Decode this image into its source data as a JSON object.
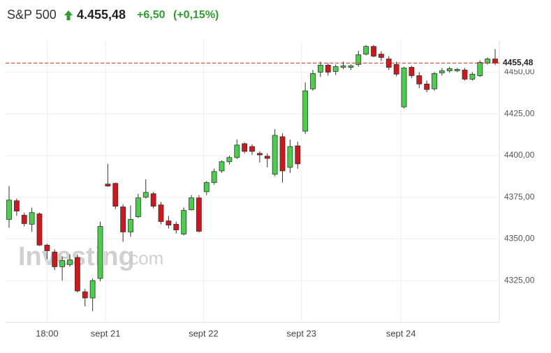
{
  "chart_data": {
    "type": "candlestick",
    "title": "S&P 500",
    "price": "4.455,48",
    "change": "+6,50",
    "change_pct": "(+0,15%)",
    "watermark": [
      "Investing",
      ".com"
    ],
    "up_color": "#47d147",
    "down_color": "#d7141a",
    "grid": true,
    "last_price": {
      "value": 4455.48,
      "label": "4455,48"
    },
    "ylim": [
      4300,
      4469
    ],
    "yticks": [
      {
        "value": 4325,
        "label": "4325,00"
      },
      {
        "value": 4350,
        "label": "4350,00"
      },
      {
        "value": 4375,
        "label": "4375,00"
      },
      {
        "value": 4400,
        "label": "4400,00"
      },
      {
        "value": 4425,
        "label": "4425,00"
      },
      {
        "value": 4450,
        "label": "4450,00"
      }
    ],
    "xlim": [
      -0.46,
      64.55
    ],
    "xticks": [
      {
        "value": 5,
        "label": "18:00"
      },
      {
        "value": 12.7,
        "label": "sept 21"
      },
      {
        "value": 25.6,
        "label": "sept 22"
      },
      {
        "value": 38.5,
        "label": "sept 23"
      },
      {
        "value": 51.6,
        "label": "sept 24"
      }
    ],
    "open": [
      4361.7,
      4372.9,
      4364.2,
      4358.8,
      4365.0,
      4346.3,
      4342.1,
      4333.3,
      4334.6,
      4338.8,
      4318.3,
      4314.6,
      4326.3,
      4382.9,
      4383.3,
      4369.2,
      4354.2,
      4363.3,
      4375.0,
      4377.1,
      4370.4,
      4360.8,
      4358.8,
      4352.9,
      4367.5,
      4374.6,
      4378.3,
      4383.8,
      4390.8,
      4396.3,
      4398.8,
      4407.1,
      4405.4,
      4401.3,
      4399.6,
      4388.8,
      4411.3,
      4392.9,
      4405.8,
      4414.6,
      4440.0,
      4450.0,
      4454.2,
      4450.4,
      4452.9,
      4452.9,
      4454.6,
      4460.8,
      4465.4,
      4460.8,
      4457.9,
      4454.6,
      4429.2,
      4452.9,
      4447.9,
      4442.9,
      4440.0,
      4449.6,
      4450.8,
      4450.8,
      4451.3,
      4445.8,
      4447.9,
      4455.4,
      4457.9
    ],
    "high": [
      4381.7,
      4374.2,
      4365.8,
      4368.8,
      4365.8,
      4347.1,
      4343.8,
      4339.6,
      4340.8,
      4340.8,
      4320.0,
      4326.3,
      4360.4,
      4395.0,
      4383.8,
      4370.8,
      4370.0,
      4377.1,
      4385.8,
      4378.3,
      4372.1,
      4363.8,
      4360.4,
      4368.8,
      4376.3,
      4376.3,
      4384.6,
      4392.1,
      4397.1,
      4400.0,
      4409.6,
      4407.9,
      4406.7,
      4402.5,
      4401.3,
      4415.8,
      4413.3,
      4409.6,
      4408.3,
      4443.8,
      4451.3,
      4456.3,
      4455.4,
      4454.6,
      4456.3,
      4454.6,
      4462.9,
      4466.3,
      4466.3,
      4462.5,
      4459.6,
      4456.3,
      4453.3,
      4453.8,
      4450.0,
      4445.0,
      4450.0,
      4452.5,
      4453.3,
      4452.5,
      4452.5,
      4450.0,
      4457.1,
      4458.8,
      4463.8
    ],
    "low": [
      4356.7,
      4363.8,
      4357.5,
      4354.2,
      4345.8,
      4337.9,
      4331.3,
      4325.0,
      4333.3,
      4317.9,
      4309.6,
      4306.7,
      4324.6,
      4381.3,
      4367.9,
      4348.3,
      4351.3,
      4362.5,
      4374.2,
      4368.3,
      4358.8,
      4356.3,
      4353.3,
      4352.1,
      4367.1,
      4353.8,
      4376.3,
      4382.5,
      4389.6,
      4394.6,
      4397.9,
      4401.3,
      4400.4,
      4395.8,
      4392.9,
      4387.5,
      4383.8,
      4389.6,
      4392.1,
      4412.9,
      4438.8,
      4447.1,
      4447.9,
      4448.3,
      4451.7,
      4451.3,
      4453.3,
      4460.0,
      4458.8,
      4456.7,
      4451.3,
      4447.5,
      4428.3,
      4446.3,
      4440.4,
      4437.9,
      4438.8,
      4447.9,
      4449.6,
      4450.0,
      4445.0,
      4445.0,
      4447.1,
      4454.6,
      4454.2
    ],
    "close": [
      4373.3,
      4366.7,
      4359.2,
      4365.8,
      4346.3,
      4342.9,
      4333.3,
      4337.1,
      4337.5,
      4318.8,
      4314.6,
      4325.0,
      4357.5,
      4381.7,
      4369.6,
      4354.2,
      4361.7,
      4374.6,
      4377.9,
      4369.6,
      4360.4,
      4358.3,
      4355.4,
      4367.1,
      4374.6,
      4354.6,
      4383.8,
      4390.4,
      4396.3,
      4398.8,
      4406.3,
      4402.5,
      4402.5,
      4400.4,
      4398.3,
      4412.1,
      4390.8,
      4405.4,
      4395.0,
      4438.8,
      4449.2,
      4454.2,
      4450.0,
      4453.3,
      4453.8,
      4453.8,
      4460.4,
      4465.4,
      4459.6,
      4458.8,
      4452.9,
      4448.8,
      4452.5,
      4447.9,
      4442.9,
      4439.6,
      4449.2,
      4450.8,
      4452.1,
      4451.7,
      4445.8,
      4448.8,
      4455.8,
      4457.9,
      4455.48
    ]
  }
}
